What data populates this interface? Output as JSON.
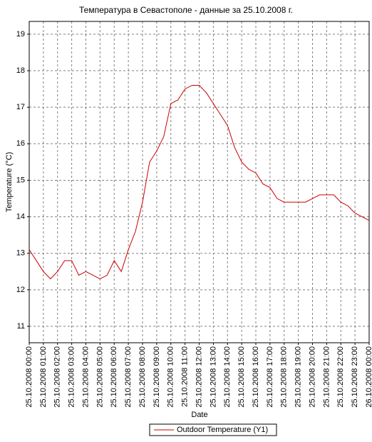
{
  "chart_data": {
    "type": "line",
    "title": "Температура в Севастополе - данные за 25.10.2008 г.",
    "x_label": "Date",
    "y_label": "Temperature (°C)",
    "x": [
      0,
      0.5,
      1,
      1.5,
      2,
      2.5,
      3,
      3.5,
      4,
      4.5,
      5,
      5.5,
      6,
      6.5,
      7,
      7.5,
      8,
      8.5,
      9,
      9.5,
      10,
      10.5,
      11,
      11.5,
      12,
      12.5,
      13,
      13.5,
      14,
      14.5,
      15,
      15.5,
      16,
      16.5,
      17,
      17.5,
      18,
      18.5,
      19,
      19.5,
      20,
      20.5,
      21,
      21.5,
      22,
      22.5,
      23,
      23.5,
      24
    ],
    "series": [
      {
        "name": "Outdoor Temperature (Y1)",
        "color": "#cc0000",
        "values": [
          13.1,
          12.8,
          12.5,
          12.3,
          12.5,
          12.8,
          12.8,
          12.4,
          12.5,
          12.4,
          12.3,
          12.4,
          12.8,
          12.5,
          13.1,
          13.6,
          14.4,
          15.5,
          15.8,
          16.2,
          17.1,
          17.2,
          17.5,
          17.6,
          17.6,
          17.4,
          17.1,
          16.8,
          16.5,
          15.9,
          15.5,
          15.3,
          15.2,
          14.9,
          14.8,
          14.5,
          14.4,
          14.4,
          14.4,
          14.4,
          14.5,
          14.6,
          14.6,
          14.6,
          14.4,
          14.3,
          14.1,
          14.0,
          13.9
        ]
      }
    ],
    "xlim": [
      0,
      24
    ],
    "xticks": [
      {
        "value": 0,
        "label": "25.10.2008 00:00"
      },
      {
        "value": 1,
        "label": "25.10.2008 01:00"
      },
      {
        "value": 2,
        "label": "25.10.2008 02:00"
      },
      {
        "value": 3,
        "label": "25.10.2008 03:00"
      },
      {
        "value": 4,
        "label": "25.10.2008 04:00"
      },
      {
        "value": 5,
        "label": "25.10.2008 05:00"
      },
      {
        "value": 6,
        "label": "25.10.2008 06:00"
      },
      {
        "value": 7,
        "label": "25.10.2008 07:00"
      },
      {
        "value": 8,
        "label": "25.10.2008 08:00"
      },
      {
        "value": 9,
        "label": "25.10.2008 09:00"
      },
      {
        "value": 10,
        "label": "25.10.2008 10:00"
      },
      {
        "value": 11,
        "label": "25.10.2008 11:00"
      },
      {
        "value": 12,
        "label": "25.10.2008 12:00"
      },
      {
        "value": 13,
        "label": "25.10.2008 13:00"
      },
      {
        "value": 14,
        "label": "25.10.2008 14:00"
      },
      {
        "value": 15,
        "label": "25.10.2008 15:00"
      },
      {
        "value": 16,
        "label": "25.10.2008 16:00"
      },
      {
        "value": 17,
        "label": "25.10.2008 17:00"
      },
      {
        "value": 18,
        "label": "25.10.2008 18:00"
      },
      {
        "value": 19,
        "label": "25.10.2008 19:00"
      },
      {
        "value": 20,
        "label": "25.10.2008 20:00"
      },
      {
        "value": 21,
        "label": "25.10.2008 21:00"
      },
      {
        "value": 22,
        "label": "25.10.2008 22:00"
      },
      {
        "value": 23,
        "label": "25.10.2008 23:00"
      },
      {
        "value": 24,
        "label": "26.10.2008 00:00"
      }
    ],
    "ylim": [
      10.55,
      19.35
    ],
    "yticks": [
      11,
      12,
      13,
      14,
      15,
      16,
      17,
      18,
      19
    ],
    "grid": true
  }
}
